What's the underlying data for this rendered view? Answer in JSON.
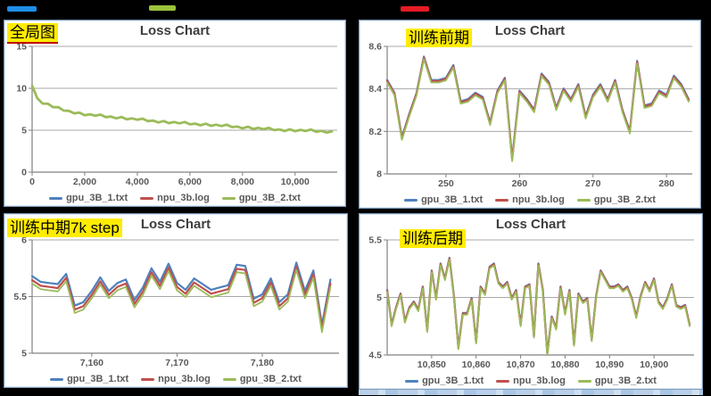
{
  "page": {
    "background": "#000000"
  },
  "top_marks": {
    "blue": {
      "color": "#1f8fea"
    },
    "green": {
      "color": "#9cc23c"
    },
    "red": {
      "color": "#e51c23"
    }
  },
  "panels": [
    {
      "label": "全局图"
    },
    {
      "label": "训练前期"
    },
    {
      "label": "训练中期7k step"
    },
    {
      "label": "训练后期"
    }
  ],
  "chart_data": [
    {
      "type": "line",
      "title": "Loss Chart",
      "annotation": "全局图",
      "xlim": [
        0,
        11600
      ],
      "ylim": [
        0,
        15
      ],
      "grid": true,
      "legend_position": "bottom",
      "yticks": [
        {
          "v": 0,
          "label": "0"
        },
        {
          "v": 5,
          "label": "5"
        },
        {
          "v": 10,
          "label": "10"
        },
        {
          "v": 15,
          "label": "15"
        }
      ],
      "xticks": [
        {
          "v": 0,
          "label": "0"
        },
        {
          "v": 2000,
          "label": "2,000"
        },
        {
          "v": 4000,
          "label": "4,000"
        },
        {
          "v": 6000,
          "label": "6,000"
        },
        {
          "v": 8000,
          "label": "8,000"
        },
        {
          "v": 10000,
          "label": "10,000"
        }
      ],
      "x_start": 0,
      "x_step": 200,
      "values": [
        10.3,
        8.8,
        8.18,
        8.16,
        7.74,
        7.74,
        7.34,
        7.31,
        7.01,
        7.1,
        6.78,
        6.9,
        6.72,
        6.86,
        6.56,
        6.63,
        6.41,
        6.58,
        6.3,
        6.42,
        6.24,
        6.38,
        6.08,
        6.15,
        5.93,
        6.1,
        5.84,
        5.98,
        5.82,
        5.98,
        5.7,
        5.79,
        5.59,
        5.78,
        5.52,
        5.66,
        5.5,
        5.66,
        5.37,
        5.44,
        5.22,
        5.41,
        5.15,
        5.29,
        5.13,
        5.29,
        5.01,
        5.1,
        4.9,
        5.11,
        4.88,
        5.04,
        4.9,
        5.08,
        4.82,
        4.91,
        4.72,
        4.85
      ],
      "series": [
        {
          "name": "gpu_3B_1.txt",
          "color": "#4f81bd",
          "offset": 0,
          "width": 2.0
        },
        {
          "name": "npu_3b.log",
          "color": "#c0504d",
          "offset": 0,
          "width": 2.0
        },
        {
          "name": "gpu_3B_2.txt",
          "color": "#9bbb59",
          "offset": 0,
          "width": 2.8
        }
      ]
    },
    {
      "type": "line",
      "title": "Loss Chart",
      "annotation": "训练前期",
      "xlim": [
        242,
        283.5
      ],
      "ylim": [
        8,
        8.6
      ],
      "grid": true,
      "legend_position": "bottom",
      "yticks": [
        {
          "v": 8,
          "label": "8"
        },
        {
          "v": 8.2,
          "label": "8.2"
        },
        {
          "v": 8.4,
          "label": "8.4"
        },
        {
          "v": 8.6,
          "label": "8.6"
        }
      ],
      "xticks": [
        {
          "v": 250,
          "label": "250"
        },
        {
          "v": 260,
          "label": "260"
        },
        {
          "v": 270,
          "label": "270"
        },
        {
          "v": 280,
          "label": "280"
        }
      ],
      "x_start": 242,
      "x_step": 1,
      "values": [
        8.43,
        8.37,
        8.16,
        8.27,
        8.37,
        8.54,
        8.43,
        8.43,
        8.44,
        8.5,
        8.33,
        8.34,
        8.37,
        8.35,
        8.23,
        8.38,
        8.44,
        8.06,
        8.38,
        8.34,
        8.29,
        8.46,
        8.42,
        8.3,
        8.39,
        8.34,
        8.41,
        8.26,
        8.36,
        8.41,
        8.34,
        8.43,
        8.29,
        8.19,
        8.52,
        8.31,
        8.32,
        8.38,
        8.36,
        8.45,
        8.41,
        8.34
      ],
      "series": [
        {
          "name": "gpu_3B_1.txt",
          "color": "#4f81bd",
          "offset": 0.012,
          "width": 2.2
        },
        {
          "name": "npu_3b.log",
          "color": "#c0504d",
          "offset": 0.007,
          "width": 2.2
        },
        {
          "name": "gpu_3B_2.txt",
          "color": "#9bbb59",
          "offset": 0,
          "width": 1.8
        }
      ]
    },
    {
      "type": "line",
      "title": "Loss Chart",
      "annotation": "训练中期7k step",
      "xlim": [
        7153,
        7189
      ],
      "ylim": [
        5,
        6
      ],
      "grid": true,
      "legend_position": "bottom",
      "yticks": [
        {
          "v": 5,
          "label": "5"
        },
        {
          "v": 5.5,
          "label": "5.5"
        },
        {
          "v": 6,
          "label": "6"
        }
      ],
      "xticks": [
        {
          "v": 7160,
          "label": "7,160"
        },
        {
          "v": 7170,
          "label": "7,170"
        },
        {
          "v": 7180,
          "label": "7,180"
        }
      ],
      "x_start": 7153,
      "x_step": 1,
      "values": [
        5.68,
        5.63,
        5.62,
        5.61,
        5.7,
        5.42,
        5.45,
        5.55,
        5.67,
        5.55,
        5.62,
        5.65,
        5.47,
        5.58,
        5.75,
        5.63,
        5.79,
        5.62,
        5.56,
        5.66,
        5.61,
        5.56,
        5.58,
        5.6,
        5.78,
        5.77,
        5.48,
        5.52,
        5.66,
        5.45,
        5.52,
        5.8,
        5.55,
        5.73,
        5.25,
        5.65
      ],
      "series": [
        {
          "name": "gpu_3B_1.txt",
          "color": "#4f81bd",
          "offset": 0,
          "width": 2.2
        },
        {
          "name": "npu_3b.log",
          "color": "#c0504d",
          "offset": -0.035,
          "width": 2.2
        },
        {
          "name": "gpu_3B_2.txt",
          "color": "#9bbb59",
          "offset": -0.065,
          "width": 1.8
        }
      ]
    },
    {
      "type": "line",
      "title": "Loss Chart",
      "annotation": "训练后期",
      "xlim": [
        10840,
        10909
      ],
      "ylim": [
        4.5,
        5.5
      ],
      "grid": true,
      "legend_position": "bottom",
      "yticks": [
        {
          "v": 4.5,
          "label": "4.5"
        },
        {
          "v": 5,
          "label": "5"
        },
        {
          "v": 5.5,
          "label": "5.5"
        }
      ],
      "xticks": [
        {
          "v": 10850,
          "label": "10,850"
        },
        {
          "v": 10860,
          "label": "10,860"
        },
        {
          "v": 10870,
          "label": "10,870"
        },
        {
          "v": 10880,
          "label": "10,880"
        },
        {
          "v": 10890,
          "label": "10,890"
        },
        {
          "v": 10900,
          "label": "10,900"
        }
      ],
      "x_start": 10840,
      "x_step": 1,
      "values": [
        5.05,
        4.75,
        4.9,
        5.02,
        4.78,
        4.9,
        4.95,
        4.88,
        5.08,
        4.7,
        5.22,
        4.98,
        5.28,
        5.15,
        5.33,
        5.0,
        4.55,
        4.85,
        4.85,
        4.98,
        4.6,
        5.08,
        5.02,
        5.25,
        5.28,
        5.12,
        5.08,
        5.12,
        4.98,
        5.05,
        4.75,
        5.08,
        5.1,
        4.65,
        5.28,
        5.05,
        4.5,
        4.82,
        4.72,
        5.08,
        4.85,
        5.05,
        4.58,
        5.02,
        4.95,
        4.98,
        4.62,
        5.0,
        5.22,
        5.15,
        5.08,
        5.08,
        5.1,
        5.05,
        5.08,
        4.98,
        4.82,
        5.0,
        5.12,
        5.05,
        5.15,
        4.95,
        4.9,
        4.98,
        5.1,
        4.92,
        4.9,
        4.92,
        4.75
      ],
      "series": [
        {
          "name": "gpu_3B_1.txt",
          "color": "#4f81bd",
          "offset": 0.015,
          "width": 2.2
        },
        {
          "name": "npu_3b.log",
          "color": "#c0504d",
          "offset": 0.01,
          "width": 2.2
        },
        {
          "name": "gpu_3B_2.txt",
          "color": "#9bbb59",
          "offset": 0,
          "width": 1.8
        }
      ]
    }
  ]
}
